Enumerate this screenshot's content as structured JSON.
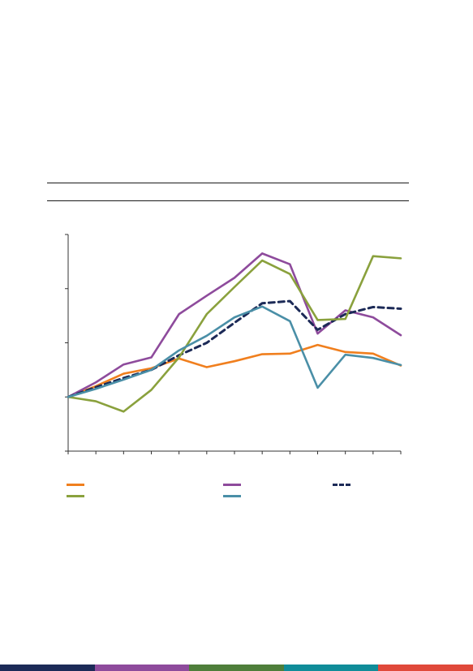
{
  "chart_data": {
    "type": "line",
    "title": "",
    "xlabel": "",
    "ylabel": "",
    "x": [
      0,
      1,
      2,
      3,
      4,
      5,
      6,
      7,
      8,
      9,
      10,
      11,
      12
    ],
    "ylim": [
      -1,
      3
    ],
    "y_ticks": [
      -1,
      0,
      1,
      2,
      3
    ],
    "grid": false,
    "legend_position": "bottom",
    "series": [
      {
        "color": "#F07F1E",
        "style": "solid",
        "values": [
          0,
          0.2,
          0.43,
          0.53,
          0.71,
          0.55,
          0.66,
          0.79,
          0.8,
          0.96,
          0.83,
          0.8,
          0.58
        ]
      },
      {
        "color": "#8E4B9C",
        "style": "solid",
        "values": [
          0,
          0.27,
          0.6,
          0.73,
          1.53,
          1.87,
          2.2,
          2.65,
          2.45,
          1.17,
          1.6,
          1.47,
          1.14
        ]
      },
      {
        "color": "#1C2A57",
        "style": "dashed",
        "values": [
          0,
          0.18,
          0.35,
          0.5,
          0.77,
          1.0,
          1.37,
          1.73,
          1.77,
          1.24,
          1.53,
          1.66,
          1.63
        ]
      },
      {
        "color": "#8AA13D",
        "style": "solid",
        "values": [
          0,
          -0.08,
          -0.27,
          0.13,
          0.73,
          1.53,
          2.03,
          2.52,
          2.27,
          1.42,
          1.44,
          2.6,
          2.56
        ]
      },
      {
        "color": "#4A8FA7",
        "style": "solid",
        "values": [
          0,
          0.15,
          0.32,
          0.5,
          0.86,
          1.13,
          1.47,
          1.67,
          1.4,
          0.17,
          0.78,
          0.72,
          0.59
        ]
      }
    ]
  },
  "footer_colors": [
    "#1C2A57",
    "#8E4B9C",
    "#4E7E3A",
    "#0F8C99",
    "#E0493A"
  ]
}
